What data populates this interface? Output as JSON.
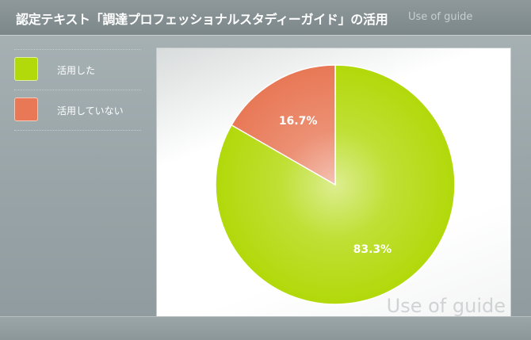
{
  "header": {
    "title": "認定テキスト「調達プロフェッショナルスタディーガイド」の活用",
    "subtitle": "Use of guide"
  },
  "watermark": "Use of guide",
  "colors": {
    "used": "#b2d90a",
    "not_used": "#e87856"
  },
  "chart_data": {
    "type": "pie",
    "slices": [
      {
        "name": "活用した",
        "value": 83.3,
        "label": "83.3%",
        "color": "#b2d90a"
      },
      {
        "name": "活用していない",
        "value": 16.7,
        "label": "16.7%",
        "color": "#e87856"
      }
    ]
  }
}
